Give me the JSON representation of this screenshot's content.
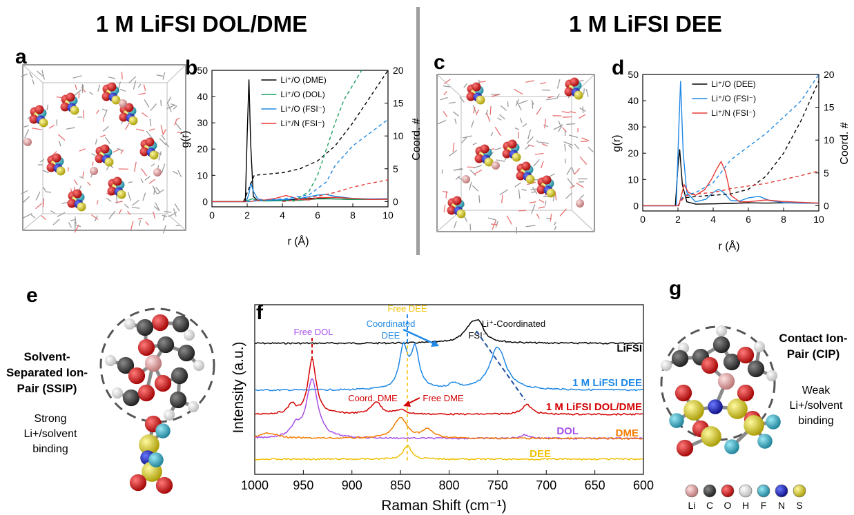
{
  "headings": {
    "left": "1 M LiFSI DOL/DME",
    "right": "1 M LiFSI DEE"
  },
  "panel_letters": {
    "a": "a",
    "b": "b",
    "c": "c",
    "d": "d",
    "e": "e",
    "f": "f",
    "g": "g"
  },
  "panel_e": {
    "label_lines": [
      "Solvent-",
      "Separated Ion-",
      "Pair (SSIP)"
    ],
    "binding_lines": [
      "Strong",
      "Li+/solvent",
      "binding"
    ]
  },
  "panel_g": {
    "label_lines": [
      "Contact Ion-",
      "Pair (CIP)"
    ],
    "binding_lines": [
      "Weak",
      "Li+/solvent",
      "binding"
    ]
  },
  "element_key": [
    {
      "symbol": "Li",
      "color": "#e8a0a0"
    },
    {
      "symbol": "C",
      "color": "#3a3a3a"
    },
    {
      "symbol": "O",
      "color": "#e01010"
    },
    {
      "symbol": "H",
      "color": "#e8e8e8"
    },
    {
      "symbol": "F",
      "color": "#3ab0c8"
    },
    {
      "symbol": "N",
      "color": "#1020c0"
    },
    {
      "symbol": "S",
      "color": "#e8e020"
    }
  ],
  "colors": {
    "black": "#000000",
    "green": "#1aa060",
    "blue": "#1e88e5",
    "red": "#e53935",
    "purple": "#a64ee8",
    "orange": "#f57c00",
    "yellow": "#f0c000",
    "darkred": "#d50000"
  },
  "chart_data": [
    {
      "id": "b",
      "type": "line",
      "title": "",
      "xlabel": "r (Å)",
      "ylabel": "g(r)",
      "y2label": "Coord. #",
      "xlim": [
        0,
        10
      ],
      "ylim": [
        -2,
        50
      ],
      "y2lim": [
        -0.8,
        20
      ],
      "xticks": [
        0,
        2,
        4,
        6,
        8,
        10
      ],
      "yticks": [
        0,
        10,
        20,
        30,
        40,
        50
      ],
      "y2ticks": [
        0,
        5,
        10,
        15,
        20
      ],
      "legend_position": "top-right",
      "legend": [
        {
          "name": "Li⁺/O (DME)",
          "color": "#000000"
        },
        {
          "name": "Li⁺/O (DOL)",
          "color": "#1aa060"
        },
        {
          "name": "Li⁺/O (FSI⁻)",
          "color": "#1e88e5"
        },
        {
          "name": "Li⁺/N (FSI⁻)",
          "color": "#e53935"
        }
      ],
      "series": [
        {
          "color": "#000000",
          "axis": "left",
          "x": [
            0,
            1.9,
            2.0,
            2.1,
            2.2,
            2.35,
            2.6,
            3,
            4,
            5,
            6,
            7,
            8,
            9,
            10
          ],
          "y": [
            0,
            0,
            25,
            46.5,
            22,
            2,
            0.3,
            0.3,
            0.5,
            1,
            1.3,
            1,
            0.8,
            0.9,
            1
          ]
        },
        {
          "color": "#1aa060",
          "axis": "left",
          "x": [
            0,
            1.9,
            2.1,
            2.3,
            2.6,
            3,
            4,
            5,
            6,
            7,
            8,
            9,
            10
          ],
          "y": [
            0,
            0,
            0.6,
            1.1,
            0.4,
            0.2,
            0.3,
            0.5,
            1,
            1,
            0.8,
            0.8,
            0.9
          ]
        },
        {
          "color": "#1e88e5",
          "axis": "left",
          "x": [
            0,
            1.95,
            2.1,
            2.2,
            2.35,
            2.6,
            3,
            4,
            5,
            6,
            6.5,
            7,
            8,
            9,
            10
          ],
          "y": [
            0,
            0,
            3,
            7.2,
            4,
            1,
            0.5,
            0.7,
            1.2,
            2.5,
            2.7,
            2,
            1.2,
            1,
            1.1
          ]
        },
        {
          "color": "#e53935",
          "axis": "left",
          "x": [
            0,
            2.2,
            2.5,
            3,
            3.6,
            4.2,
            4.6,
            5,
            5.5,
            6,
            7,
            8,
            9,
            10
          ],
          "y": [
            0,
            0,
            0.5,
            0.6,
            1.2,
            2.3,
            1.6,
            0.8,
            0.6,
            1.5,
            1.6,
            1.2,
            0.8,
            0.9
          ]
        },
        {
          "color": "#000000",
          "axis": "right",
          "dashed": true,
          "x": [
            1.8,
            2.1,
            2.4,
            4,
            5,
            6,
            7,
            8,
            9,
            10
          ],
          "y": [
            0,
            2,
            4,
            4.4,
            5,
            6.2,
            8.5,
            12,
            16,
            20
          ]
        },
        {
          "color": "#1aa060",
          "axis": "right",
          "dashed": true,
          "x": [
            4.6,
            5.5,
            6,
            6.5,
            7,
            7.5,
            8.5
          ],
          "y": [
            0,
            1.5,
            4,
            8,
            12,
            15.5,
            20
          ]
        },
        {
          "color": "#1e88e5",
          "axis": "right",
          "dashed": true,
          "x": [
            2,
            4,
            5.5,
            6.5,
            7,
            8,
            9,
            10
          ],
          "y": [
            0,
            0.4,
            1,
            3,
            5.5,
            8.5,
            10.5,
            12.5
          ]
        },
        {
          "color": "#e53935",
          "axis": "right",
          "dashed": true,
          "x": [
            4,
            5,
            6,
            7,
            8,
            9,
            10
          ],
          "y": [
            0,
            0.3,
            0.8,
            1.4,
            2.2,
            2.8,
            3.3
          ]
        }
      ]
    },
    {
      "id": "d",
      "type": "line",
      "title": "",
      "xlabel": "r (Å)",
      "ylabel": "g(r)",
      "y2label": "Coord. #",
      "xlim": [
        0,
        10
      ],
      "ylim": [
        -2,
        50
      ],
      "y2lim": [
        -0.8,
        20
      ],
      "xticks": [
        0,
        2,
        4,
        6,
        8,
        10
      ],
      "yticks": [
        0,
        10,
        20,
        30,
        40,
        50
      ],
      "y2ticks": [
        0,
        5,
        10,
        15,
        20
      ],
      "legend_position": "top-right",
      "legend": [
        {
          "name": "Li⁺/O (DEE)",
          "color": "#000000"
        },
        {
          "name": "Li⁺/O (FSI⁻)",
          "color": "#1e88e5"
        },
        {
          "name": "Li⁺/N (FSI⁻)",
          "color": "#e53935"
        }
      ],
      "series": [
        {
          "color": "#000000",
          "axis": "left",
          "x": [
            0,
            1.85,
            2.0,
            2.1,
            2.25,
            2.5,
            3,
            4,
            5,
            6,
            7,
            8,
            9,
            10
          ],
          "y": [
            0,
            0,
            15,
            21.5,
            8,
            1.5,
            0.6,
            0.7,
            0.9,
            1.1,
            1,
            1.1,
            1,
            1
          ]
        },
        {
          "color": "#1e88e5",
          "axis": "left",
          "x": [
            0,
            1.9,
            2.05,
            2.15,
            2.3,
            2.5,
            3,
            3.6,
            4,
            4.3,
            4.6,
            5,
            5.5,
            6,
            6.6,
            7.2,
            8,
            9,
            10
          ],
          "y": [
            0,
            0,
            30,
            47.5,
            20,
            5,
            1.5,
            2.5,
            5,
            6.3,
            5,
            2,
            1.8,
            3,
            3.6,
            2,
            1.2,
            1,
            1
          ]
        },
        {
          "color": "#e53935",
          "axis": "left",
          "x": [
            0,
            2.05,
            2.2,
            2.35,
            2.6,
            3,
            3.5,
            3.9,
            4.2,
            4.45,
            4.7,
            5,
            5.5,
            6,
            7,
            8,
            9,
            10
          ],
          "y": [
            0,
            0,
            4,
            8,
            5,
            4,
            6,
            10,
            14,
            16.8,
            13,
            4,
            1.5,
            1.5,
            2.2,
            1.6,
            1.3,
            1
          ]
        },
        {
          "color": "#000000",
          "axis": "right",
          "dashed": true,
          "x": [
            2,
            2.3,
            3,
            5,
            6,
            7,
            8,
            9,
            10
          ],
          "y": [
            0,
            1.2,
            1.4,
            1.8,
            2.5,
            4.5,
            8,
            13,
            19
          ]
        },
        {
          "color": "#1e88e5",
          "axis": "right",
          "dashed": true,
          "x": [
            2,
            2.3,
            3,
            4,
            5,
            6,
            7,
            8,
            9,
            10
          ],
          "y": [
            0,
            1.5,
            2,
            3.5,
            7,
            9,
            11,
            13.5,
            16,
            20
          ]
        },
        {
          "color": "#e53935",
          "axis": "right",
          "dashed": true,
          "x": [
            2,
            2.4,
            3,
            4,
            5,
            6,
            7,
            8,
            9,
            10
          ],
          "y": [
            0,
            1.5,
            1.8,
            2,
            2.6,
            3,
            3.4,
            4,
            4.6,
            5.3
          ]
        }
      ]
    },
    {
      "id": "f",
      "type": "line",
      "title": "",
      "xlabel": "Raman Shift (cm⁻¹)",
      "ylabel": "Intensity (a.u.)",
      "xlim": [
        1000,
        600
      ],
      "xticks": [
        1000,
        950,
        900,
        850,
        800,
        750,
        700,
        650,
        600
      ],
      "series": [
        {
          "name": "LiFSI",
          "color": "#000000",
          "baseline": 498,
          "peaks": [
            [
              775,
              10,
              30
            ],
            [
              768,
              4,
              12
            ]
          ]
        },
        {
          "name": "1 M LiFSI DEE",
          "color": "#1e88e5",
          "baseline": 566,
          "peaks": [
            [
              847,
              5,
              60
            ],
            [
              835,
              5,
              57
            ],
            [
              750,
              10,
              62
            ],
            [
              795,
              6,
              8
            ]
          ]
        },
        {
          "name": "1 M LiFSI DOL/DME",
          "color": "#d50000",
          "baseline": 601,
          "peaks": [
            [
              941,
              5,
              80
            ],
            [
              875,
              6,
              18
            ],
            [
              850,
              6,
              6
            ],
            [
              720,
              6,
              14
            ],
            [
              962,
              4,
              14
            ]
          ]
        },
        {
          "name": "DOL",
          "color": "#a64ee8",
          "baseline": 636,
          "peaks": [
            [
              941,
              7,
              85
            ],
            [
              958,
              5,
              15
            ],
            [
              722,
              6,
              5
            ]
          ]
        },
        {
          "name": "DME",
          "color": "#f57c00",
          "baseline": 636,
          "peaks": [
            [
              850,
              8,
              30
            ],
            [
              822,
              7,
              12
            ],
            [
              985,
              10,
              8
            ]
          ]
        },
        {
          "name": "DEE",
          "color": "#f0c000",
          "baseline": 666,
          "peaks": [
            [
              843,
              5,
              20
            ]
          ]
        }
      ],
      "annotations": {
        "free_dol": "Free DOL",
        "free_dee": "Free DEE",
        "coordinated_dee": [
          "Coordinated",
          "DEE"
        ],
        "li_coordinated_fsi": [
          "Li⁺-Coordinated",
          "FSI⁻"
        ],
        "coord_dme": "Coord. DME",
        "free_dme": "Free DME"
      }
    }
  ]
}
